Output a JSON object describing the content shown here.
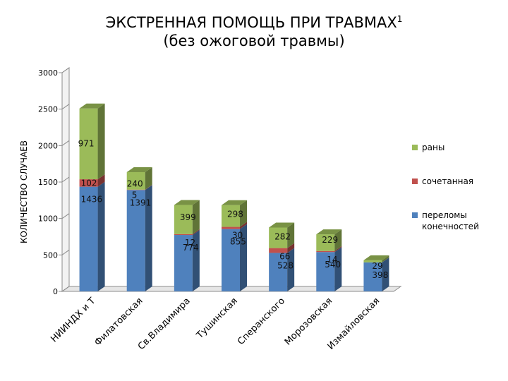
{
  "chart_data": {
    "type": "bar",
    "stacked": true,
    "title": "ЭКСТРЕННАЯ ПОМОЩЬ ПРИ ТРАВМАХ",
    "title_sup": "1",
    "subtitle": "(без ожоговой травмы)",
    "ylabel": "КОЛИЧЕСТВО СЛУЧАЕВ",
    "xlabel": "",
    "ylim": [
      0,
      3000
    ],
    "yticks": [
      "0",
      "500",
      "1000",
      "1500",
      "2000",
      "2500",
      "3000"
    ],
    "grid": false,
    "legend_position": "right",
    "categories": [
      "НИИНДХ и Т",
      "Филатовская",
      "Св.Владимира",
      "Тушинская",
      "Сперанского",
      "Морозовская",
      "Измайловская"
    ],
    "series": [
      {
        "name": "переломы конечностей",
        "color": "#4f81bd",
        "values": [
          1436,
          1391,
          774,
          855,
          528,
          540,
          398
        ],
        "labels": [
          "1436",
          "1391",
          "774",
          "855",
          "528",
          "540",
          "398"
        ]
      },
      {
        "name": "сочетанная",
        "color": "#c0504d",
        "values": [
          102,
          5,
          12,
          30,
          66,
          14,
          0
        ],
        "labels": [
          "102",
          "5",
          "12",
          "30",
          "66",
          "14",
          ""
        ]
      },
      {
        "name": "раны",
        "color": "#9bbb59",
        "values": [
          971,
          240,
          399,
          298,
          282,
          229,
          29
        ],
        "labels": [
          "971",
          "240",
          "399",
          "298",
          "282",
          "229",
          "29"
        ]
      }
    ]
  }
}
